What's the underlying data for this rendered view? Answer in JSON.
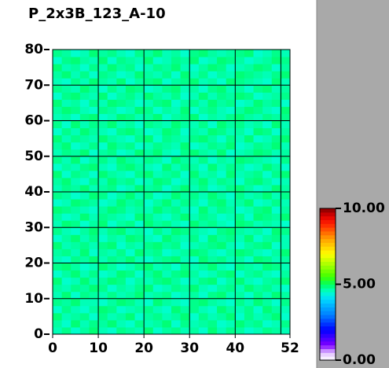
{
  "chart_data": {
    "type": "heatmap",
    "title": "P_2x3B_123_A-10",
    "xlim": [
      0,
      52
    ],
    "ylim": [
      0,
      80
    ],
    "xticks": [
      0,
      10,
      20,
      30,
      40,
      52
    ],
    "yticks": [
      0,
      10,
      20,
      30,
      40,
      50,
      60,
      70,
      80
    ],
    "xgrid": [
      10,
      20,
      30,
      40,
      50
    ],
    "grid": true,
    "clim": [
      0,
      10
    ],
    "cticks": [
      {
        "value": 0,
        "label": "0.00"
      },
      {
        "value": 5,
        "label": "5.00"
      },
      {
        "value": 10,
        "label": "10.00"
      }
    ],
    "colors": [
      "#ffffff",
      "#e0c0ff",
      "#8000ff",
      "#4000ff",
      "#0000ff",
      "#0040ff",
      "#0080ff",
      "#00a8ff",
      "#00d8ff",
      "#00ffcc",
      "#00ff60",
      "#40ff00",
      "#80ff00",
      "#c0ff00",
      "#ffff00",
      "#ffd000",
      "#ffa000",
      "#ff6000",
      "#ff2000",
      "#e00000",
      "#800000"
    ],
    "values": [
      [
        4.6,
        4.8,
        4.5,
        4.7,
        4.9,
        4.6,
        4.5,
        4.8,
        4.7,
        4.6,
        4.9,
        4.5,
        4.7,
        4.8,
        4.6,
        4.7,
        4.5,
        4.9,
        4.6,
        4.8,
        4.7,
        4.5,
        4.6,
        4.8,
        4.7,
        4.6
      ],
      [
        4.7,
        4.5,
        4.9,
        4.6,
        4.8,
        4.7,
        4.9,
        4.6,
        4.5,
        4.8,
        4.6,
        4.7,
        4.9,
        4.5,
        4.8,
        4.6,
        4.7,
        4.8,
        4.5,
        4.6,
        4.9,
        4.7,
        4.8,
        4.5,
        4.6,
        4.8
      ],
      [
        4.9,
        4.6,
        4.7,
        4.8,
        4.5,
        4.8,
        4.6,
        4.7,
        4.9,
        4.5,
        4.7,
        4.8,
        4.6,
        4.7,
        4.9,
        4.5,
        4.8,
        4.6,
        4.7,
        4.9,
        4.5,
        4.8,
        4.6,
        4.7,
        4.9,
        4.5
      ],
      [
        4.5,
        4.8,
        4.6,
        4.5,
        4.7,
        4.9,
        4.8,
        4.5,
        4.6,
        4.7,
        4.8,
        4.6,
        4.5,
        4.9,
        4.7,
        4.8,
        4.6,
        4.5,
        4.9,
        4.7,
        4.6,
        4.8,
        4.5,
        4.9,
        4.7,
        4.6
      ],
      [
        4.8,
        4.7,
        4.9,
        4.6,
        4.6,
        4.5,
        4.7,
        4.9,
        4.8,
        4.6,
        4.5,
        4.9,
        4.7,
        4.6,
        4.5,
        4.8,
        4.9,
        4.7,
        4.6,
        4.5,
        4.8,
        4.6,
        4.9,
        4.7,
        4.5,
        4.8
      ],
      [
        4.6,
        4.9,
        4.5,
        4.8,
        4.7,
        4.6,
        4.8,
        4.6,
        4.7,
        4.9,
        4.6,
        4.7,
        4.8,
        4.5,
        4.6,
        4.7,
        4.5,
        4.8,
        4.9,
        4.6,
        4.7,
        4.5,
        4.8,
        4.6,
        4.9,
        4.7
      ],
      [
        4.7,
        4.6,
        4.8,
        4.7,
        4.9,
        4.8,
        4.5,
        4.7,
        4.6,
        4.8,
        4.9,
        4.5,
        4.6,
        4.8,
        4.7,
        4.9,
        4.6,
        4.5,
        4.7,
        4.8,
        4.6,
        4.9,
        4.7,
        4.8,
        4.6,
        4.5
      ],
      [
        4.9,
        4.5,
        4.6,
        4.9,
        4.6,
        4.7,
        4.9,
        4.8,
        4.5,
        4.7,
        4.6,
        4.8,
        4.9,
        4.7,
        4.5,
        4.6,
        4.8,
        4.9,
        4.5,
        4.7,
        4.9,
        4.6,
        4.5,
        4.7,
        4.8,
        4.9
      ],
      [
        4.5,
        4.7,
        4.9,
        4.6,
        4.8,
        4.5,
        4.6,
        4.9,
        4.8,
        4.5,
        4.7,
        4.9,
        4.6,
        4.8,
        4.9,
        4.7,
        4.5,
        4.6,
        4.8,
        4.9,
        4.5,
        4.7,
        4.8,
        4.6,
        4.5,
        4.7
      ],
      [
        4.8,
        4.9,
        4.7,
        4.5,
        4.6,
        4.9,
        4.7,
        4.5,
        4.6,
        4.8,
        4.9,
        4.6,
        4.7,
        4.5,
        4.8,
        4.6,
        4.7,
        4.9,
        4.6,
        4.5,
        4.8,
        4.7,
        4.6,
        4.9,
        4.8,
        4.6
      ],
      [
        4.6,
        4.5,
        4.8,
        4.7,
        4.9,
        4.6,
        4.8,
        4.7,
        4.9,
        4.6,
        4.5,
        4.7,
        4.8,
        4.9,
        4.6,
        4.5,
        4.9,
        4.7,
        4.8,
        4.6,
        4.7,
        4.5,
        4.9,
        4.8,
        4.6,
        4.7
      ],
      [
        4.7,
        4.8,
        4.6,
        4.9,
        4.5,
        4.7,
        4.6,
        4.8,
        4.5,
        4.9,
        4.7,
        4.8,
        4.5,
        4.6,
        4.7,
        4.9,
        4.8,
        4.6,
        4.5,
        4.7,
        4.9,
        4.8,
        4.6,
        4.5,
        4.7,
        4.9
      ],
      [
        4.9,
        4.6,
        4.7,
        4.8,
        4.6,
        4.8,
        4.9,
        4.5,
        4.7,
        4.6,
        4.8,
        4.9,
        4.7,
        4.8,
        4.5,
        4.6,
        4.7,
        4.8,
        4.9,
        4.6,
        4.5,
        4.7,
        4.8,
        4.9,
        4.5,
        4.6
      ],
      [
        4.5,
        4.7,
        4.9,
        4.6,
        4.8,
        4.5,
        4.7,
        4.6,
        4.9,
        4.8,
        4.6,
        4.5,
        4.9,
        4.7,
        4.6,
        4.8,
        4.5,
        4.9,
        4.7,
        4.8,
        4.6,
        4.9,
        4.5,
        4.7,
        4.8,
        4.6
      ],
      [
        4.8,
        4.6,
        4.5,
        4.7,
        4.9,
        4.6,
        4.8,
        4.9,
        4.6,
        4.7,
        4.5,
        4.8,
        4.6,
        4.9,
        4.8,
        4.7,
        4.6,
        4.5,
        4.8,
        4.9,
        4.7,
        4.6,
        4.7,
        4.5,
        4.9,
        4.8
      ],
      [
        4.6,
        4.9,
        4.8,
        4.5,
        4.7,
        4.9,
        4.5,
        4.7,
        4.8,
        4.5,
        4.9,
        4.7,
        4.8,
        4.6,
        4.5,
        4.9,
        4.7,
        4.8,
        4.6,
        4.5,
        4.9,
        4.8,
        4.6,
        4.7,
        4.6,
        4.5
      ],
      [
        4.7,
        4.5,
        4.6,
        4.9,
        4.6,
        4.8,
        4.7,
        4.6,
        4.5,
        4.9,
        4.8,
        4.6,
        4.5,
        4.7,
        4.9,
        4.6,
        4.8,
        4.7,
        4.5,
        4.6,
        4.8,
        4.5,
        4.9,
        4.8,
        4.7,
        4.9
      ],
      [
        4.9,
        4.8,
        4.7,
        4.6,
        4.5,
        4.7,
        4.9,
        4.8,
        4.6,
        4.7,
        4.6,
        4.9,
        4.7,
        4.8,
        4.6,
        4.5,
        4.9,
        4.6,
        4.8,
        4.7,
        4.5,
        4.6,
        4.8,
        4.9,
        4.5,
        4.7
      ],
      [
        4.5,
        4.6,
        4.9,
        4.8,
        4.7,
        4.5,
        4.6,
        4.9,
        4.7,
        4.8,
        4.5,
        4.7,
        4.9,
        4.6,
        4.8,
        4.7,
        4.5,
        4.8,
        4.9,
        4.6,
        4.7,
        4.9,
        4.5,
        4.6,
        4.8,
        4.6
      ],
      [
        4.8,
        4.7,
        4.5,
        4.6,
        4.9,
        4.8,
        4.5,
        4.7,
        4.9,
        4.6,
        4.8,
        4.5,
        4.6,
        4.9,
        4.7,
        4.8,
        4.6,
        4.9,
        4.7,
        4.5,
        4.8,
        4.6,
        4.7,
        4.9,
        4.6,
        4.8
      ],
      [
        4.6,
        4.8,
        4.7,
        4.9,
        4.6,
        4.7,
        4.8,
        4.5,
        4.6,
        4.9,
        4.7,
        4.8,
        4.5,
        4.7,
        4.9,
        4.6,
        4.8,
        4.5,
        4.6,
        4.8,
        4.9,
        4.7,
        4.5,
        4.6,
        4.9,
        4.7
      ],
      [
        4.7,
        4.9,
        4.6,
        4.5,
        4.8,
        4.6,
        4.9,
        4.7,
        4.8,
        4.5,
        4.6,
        4.9,
        4.8,
        4.5,
        4.6,
        4.7,
        4.9,
        4.6,
        4.8,
        4.7,
        4.5,
        4.8,
        4.9,
        4.7,
        4.5,
        4.6
      ],
      [
        4.9,
        4.5,
        4.8,
        4.7,
        4.5,
        4.9,
        4.7,
        4.6,
        4.5,
        4.8,
        4.9,
        4.6,
        4.7,
        4.8,
        4.5,
        4.9,
        4.6,
        4.7,
        4.5,
        4.9,
        4.6,
        4.7,
        4.8,
        4.5,
        4.8,
        4.9
      ],
      [
        4.5,
        4.7,
        4.6,
        4.8,
        4.9,
        4.6,
        4.5,
        4.8,
        4.9,
        4.7,
        4.6,
        4.5,
        4.9,
        4.6,
        4.8,
        4.7,
        4.5,
        4.9,
        4.6,
        4.8,
        4.7,
        4.5,
        4.6,
        4.9,
        4.7,
        4.5
      ],
      [
        4.8,
        4.6,
        4.9,
        4.5,
        4.7,
        4.8,
        4.6,
        4.9,
        4.7,
        4.6,
        4.8,
        4.7,
        4.5,
        4.9,
        4.7,
        4.6,
        4.8,
        4.5,
        4.7,
        4.6,
        4.9,
        4.8,
        4.7,
        4.6,
        4.5,
        4.8
      ],
      [
        4.6,
        4.8,
        4.7,
        4.9,
        4.5,
        4.7,
        4.8,
        4.5,
        4.6,
        4.9,
        4.7,
        4.9,
        4.6,
        4.5,
        4.8,
        4.9,
        4.7,
        4.6,
        4.9,
        4.5,
        4.6,
        4.7,
        4.9,
        4.8,
        4.6,
        4.7
      ],
      [
        4.7,
        4.9,
        4.5,
        4.6,
        4.8,
        4.5,
        4.9,
        4.7,
        4.8,
        4.5,
        4.6,
        4.8,
        4.7,
        4.6,
        4.9,
        4.5,
        4.6,
        4.8,
        4.7,
        4.9,
        4.5,
        4.6,
        4.8,
        4.7,
        4.9,
        4.6
      ],
      [
        4.9,
        4.6,
        4.8,
        4.7,
        4.6,
        4.9,
        4.7,
        4.6,
        4.5,
        4.8,
        4.9,
        4.5,
        4.8,
        4.7,
        4.6,
        4.8,
        4.9,
        4.7,
        4.5,
        4.8,
        4.6,
        4.9,
        4.5,
        4.6,
        4.8,
        4.9
      ],
      [
        4.5,
        4.8,
        4.6,
        4.9,
        4.7,
        4.6,
        4.5,
        4.8,
        4.9,
        4.7,
        4.5,
        4.6,
        4.9,
        4.8,
        4.5,
        4.7,
        4.6,
        4.9,
        4.8,
        4.6,
        4.7,
        4.5,
        4.9,
        4.8,
        4.5,
        4.7
      ],
      [
        4.8,
        4.5,
        4.9,
        4.6,
        4.8,
        4.7,
        4.9,
        4.6,
        4.7,
        4.5,
        4.8,
        4.7,
        4.6,
        4.9,
        4.7,
        4.6,
        4.8,
        4.5,
        4.9,
        4.7,
        4.8,
        4.6,
        4.7,
        4.5,
        4.9,
        4.6
      ],
      [
        4.6,
        4.7,
        4.5,
        4.8,
        4.9,
        4.5,
        4.6,
        4.9,
        4.8,
        4.6,
        4.7,
        4.9,
        4.5,
        4.7,
        4.8,
        4.9,
        4.5,
        4.7,
        4.6,
        4.8,
        4.9,
        4.7,
        4.6,
        4.8,
        4.7,
        4.8
      ],
      [
        4.7,
        4.9,
        4.8,
        4.6,
        4.5,
        4.8,
        4.7,
        4.5,
        4.6,
        4.9,
        4.8,
        4.5,
        4.7,
        4.6,
        4.9,
        4.5,
        4.7,
        4.8,
        4.6,
        4.5,
        4.7,
        4.9,
        4.8,
        4.6,
        4.5,
        4.9
      ],
      [
        4.9,
        4.6,
        4.7,
        4.5,
        4.8,
        4.6,
        4.9,
        4.8,
        4.7,
        4.5,
        4.6,
        4.8,
        4.9,
        4.5,
        4.7,
        4.8,
        4.6,
        4.9,
        4.7,
        4.8,
        4.5,
        4.6,
        4.9,
        4.7,
        4.8,
        4.5
      ],
      [
        4.5,
        4.8,
        4.9,
        4.7,
        4.6,
        4.9,
        4.5,
        4.7,
        4.8,
        4.6,
        4.9,
        4.7,
        4.6,
        4.8,
        4.5,
        4.6,
        4.9,
        4.6,
        4.8,
        4.7,
        4.9,
        4.8,
        4.5,
        4.6,
        4.7,
        4.8
      ],
      [
        4.8,
        4.7,
        4.6,
        4.9,
        4.7,
        4.5,
        4.8,
        4.6,
        4.9,
        4.8,
        4.5,
        4.6,
        4.8,
        4.9,
        4.6,
        4.7,
        4.5,
        4.8,
        4.9,
        4.6,
        4.7,
        4.5,
        4.8,
        4.9,
        4.6,
        4.7
      ],
      [
        4.6,
        4.5,
        4.8,
        4.6,
        4.9,
        4.7,
        4.6,
        4.9,
        4.5,
        4.7,
        4.8,
        4.9,
        4.5,
        4.7,
        4.8,
        4.9,
        4.6,
        4.7,
        4.5,
        4.9,
        4.8,
        4.7,
        4.6,
        4.5,
        4.9,
        4.6
      ],
      [
        4.7,
        4.9,
        4.6,
        4.8,
        4.5,
        4.8,
        4.7,
        4.5,
        4.6,
        4.9,
        4.7,
        4.6,
        4.8,
        4.5,
        4.9,
        4.6,
        4.8,
        4.5,
        4.7,
        4.6,
        4.9,
        4.8,
        4.7,
        4.6,
        4.8,
        4.9
      ],
      [
        4.9,
        4.6,
        4.7,
        4.5,
        4.8,
        4.6,
        4.9,
        4.7,
        4.8,
        4.5,
        4.6,
        4.8,
        4.7,
        4.9,
        4.6,
        4.5,
        4.7,
        4.9,
        4.8,
        4.5,
        4.6,
        4.7,
        4.9,
        4.8,
        4.5,
        4.7
      ],
      [
        4.5,
        4.8,
        4.9,
        4.7,
        4.6,
        4.9,
        4.5,
        4.8,
        4.7,
        4.6,
        4.9,
        4.5,
        4.6,
        4.8,
        4.7,
        4.9,
        4.5,
        4.6,
        4.9,
        4.8,
        4.7,
        4.5,
        4.6,
        4.7,
        4.9,
        4.8
      ],
      [
        4.8,
        4.7,
        4.5,
        4.6,
        4.9,
        4.7,
        4.8,
        4.6,
        4.5,
        4.8,
        4.7,
        4.9,
        4.6,
        4.7,
        4.5,
        4.8,
        4.9,
        4.7,
        4.6,
        4.7,
        4.8,
        4.9,
        4.5,
        4.6,
        4.8,
        4.6
      ]
    ]
  }
}
